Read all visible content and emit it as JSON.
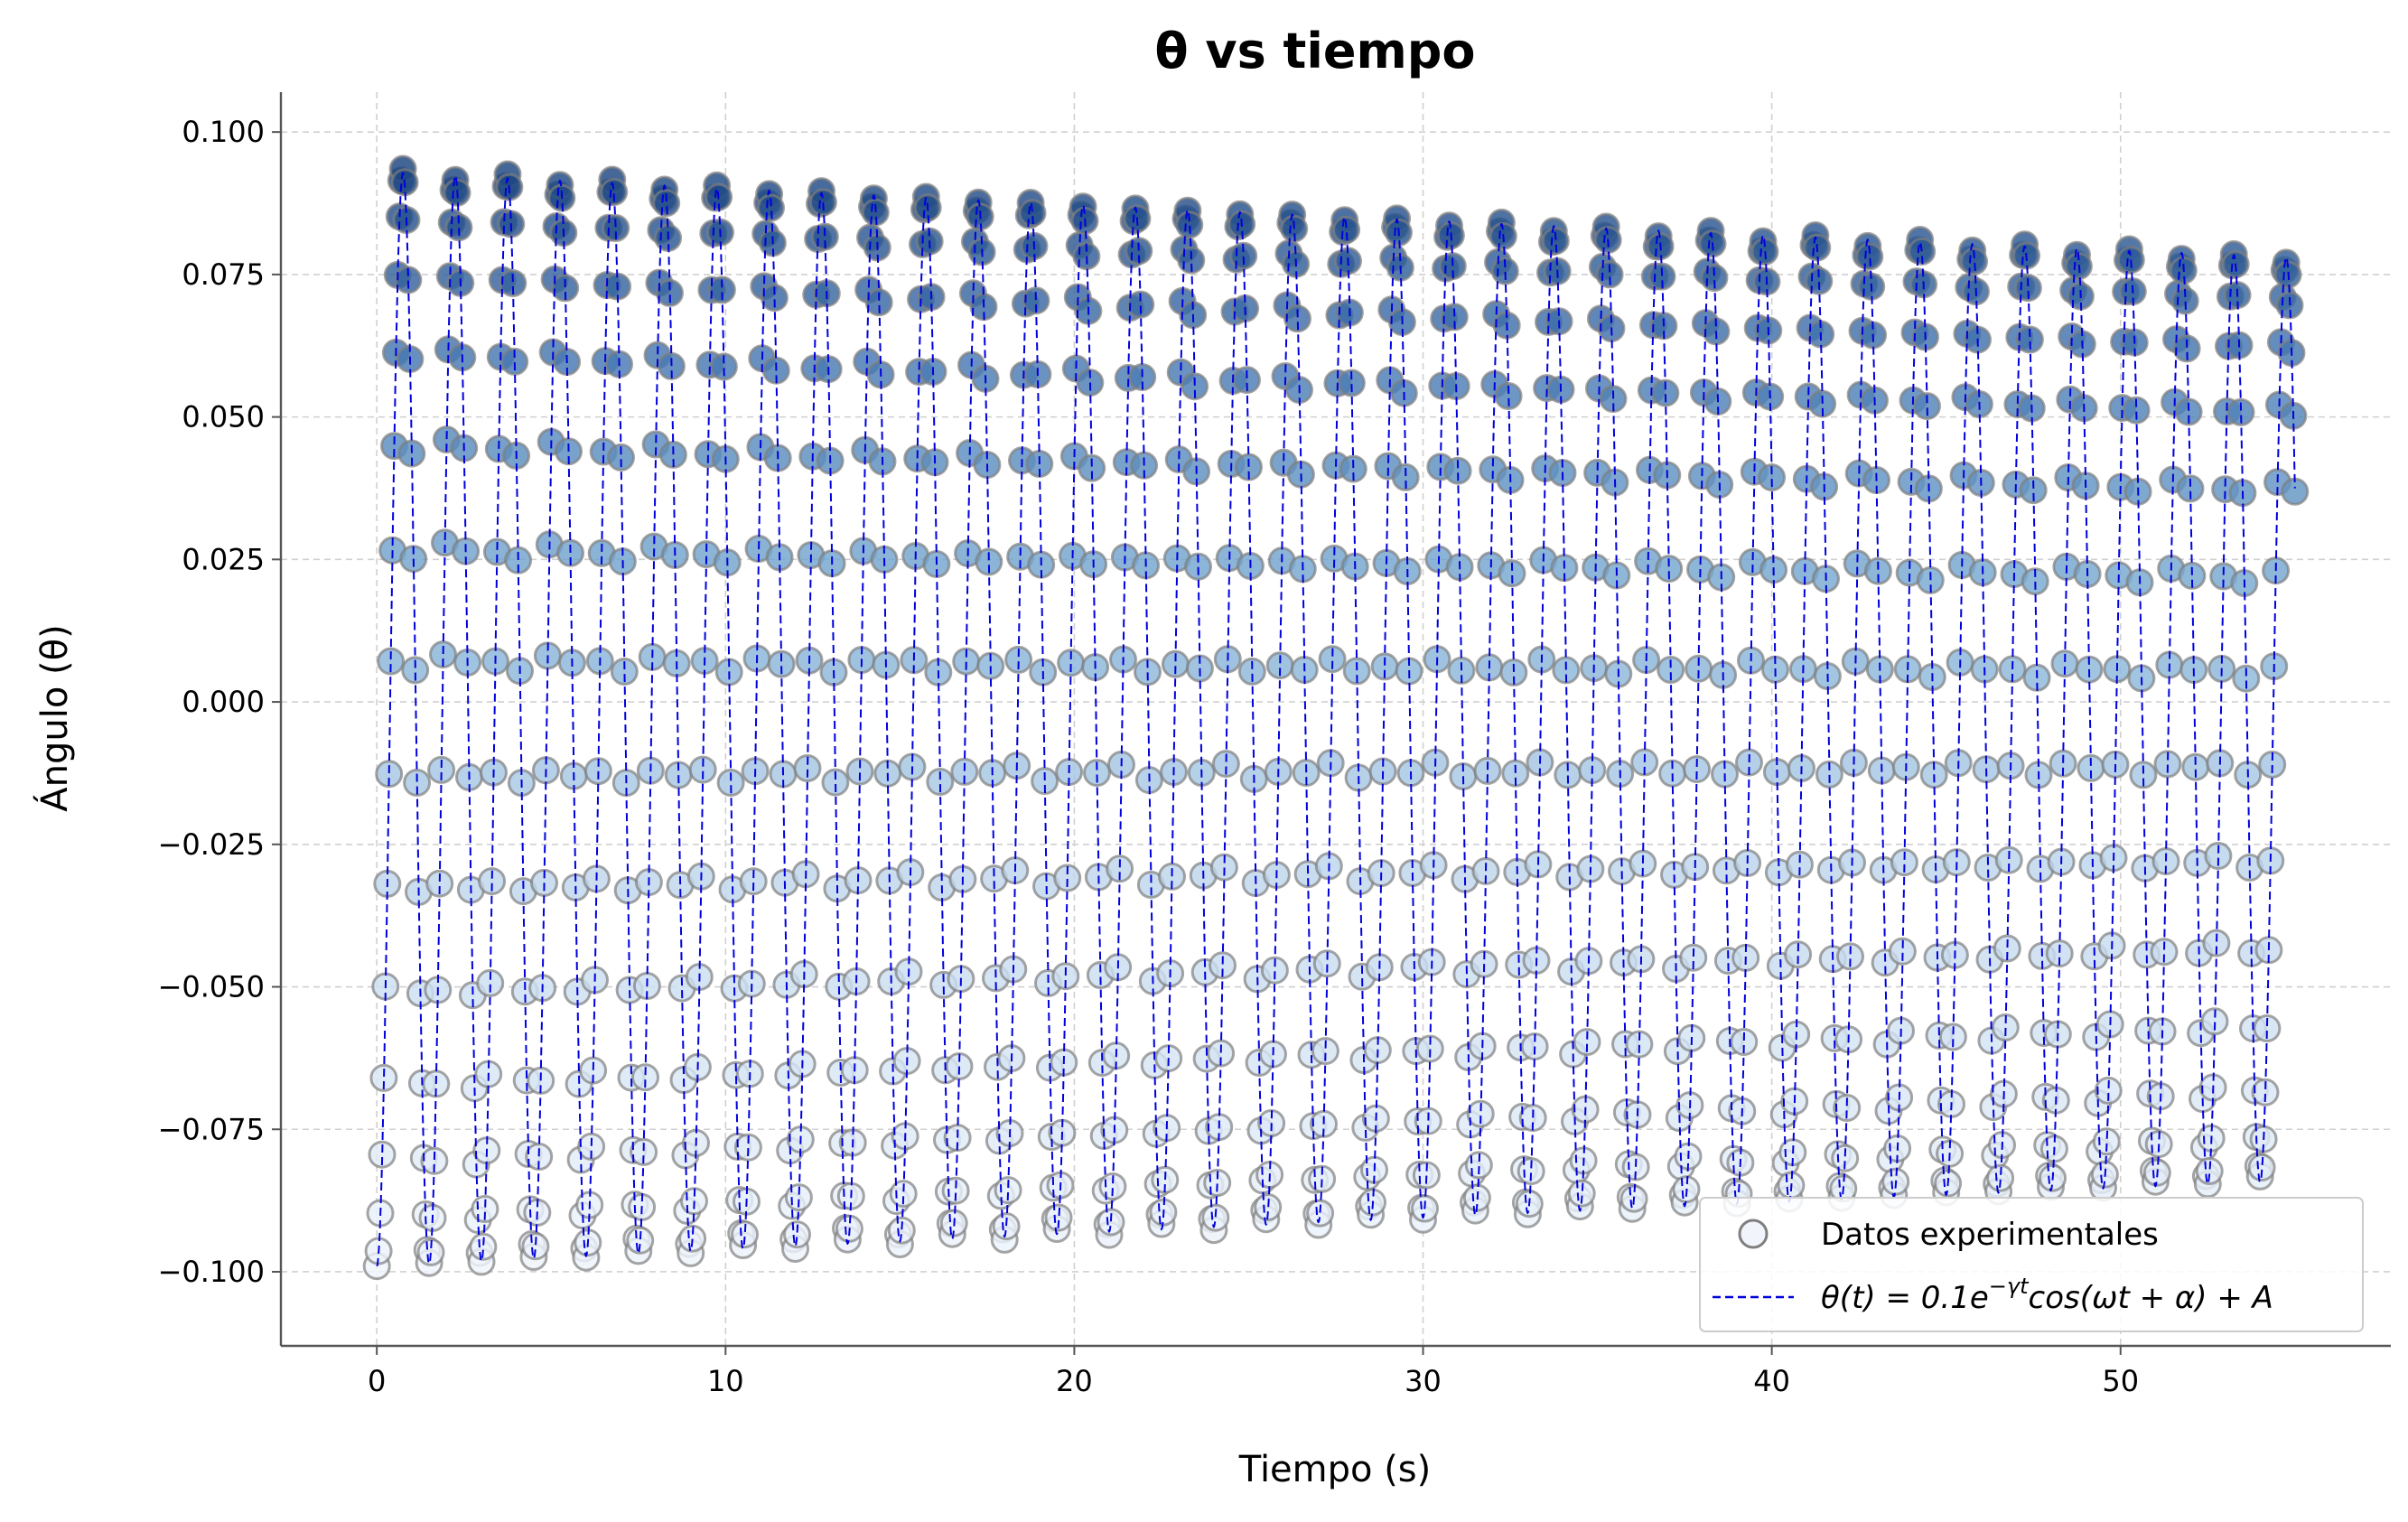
{
  "chart_data": {
    "type": "scatter",
    "title": "θ vs tiempo",
    "xlabel": "Tiempo (s)",
    "ylabel": "Ángulo (θ)",
    "xlim": [
      -2.75,
      57.75
    ],
    "ylim": [
      -0.113,
      0.107
    ],
    "x_ticks": [
      0,
      10,
      20,
      30,
      40,
      50
    ],
    "y_ticks": [
      -0.1,
      -0.075,
      -0.05,
      -0.025,
      0.0,
      0.025,
      0.05,
      0.075,
      0.1
    ],
    "x_tick_labels": [
      "0",
      "10",
      "20",
      "30",
      "40",
      "50"
    ],
    "y_tick_labels": [
      "−0.100",
      "−0.075",
      "−0.050",
      "−0.025",
      "0.000",
      "0.025",
      "0.050",
      "0.075",
      "0.100"
    ],
    "grid": true,
    "legend_position": "bottom-right",
    "series": [
      {
        "name": "Datos experimentales",
        "kind": "points",
        "colormap": "Blues",
        "note_color": "point fill varies with angle: light (low) to dark blue (high)",
        "sampling_dt_s": 0.05,
        "t_start_s": 0,
        "t_end_s": 55,
        "model_params": {
          "amplitude": 0.096,
          "gamma": 0.0031,
          "period_s": 1.5,
          "alpha": 3.1416,
          "offset": -0.003
        }
      },
      {
        "name": "θ(t) = 0.1e^{−γt}cos(ωt + α) + A",
        "kind": "line",
        "color": "#0000dd",
        "dash": "dashed"
      }
    ]
  },
  "legend": {
    "scatter_label": "Datos experimentales",
    "line_label_prefix": "θ(t) = 0.1e",
    "line_label_sup": "−γt",
    "line_label_suffix": "cos(ωt + α) + A"
  },
  "colors": {
    "line": "#0000dd",
    "grid": "#d0d0d0",
    "axis": "#555555",
    "marker_edge": "#7f7f7f"
  }
}
